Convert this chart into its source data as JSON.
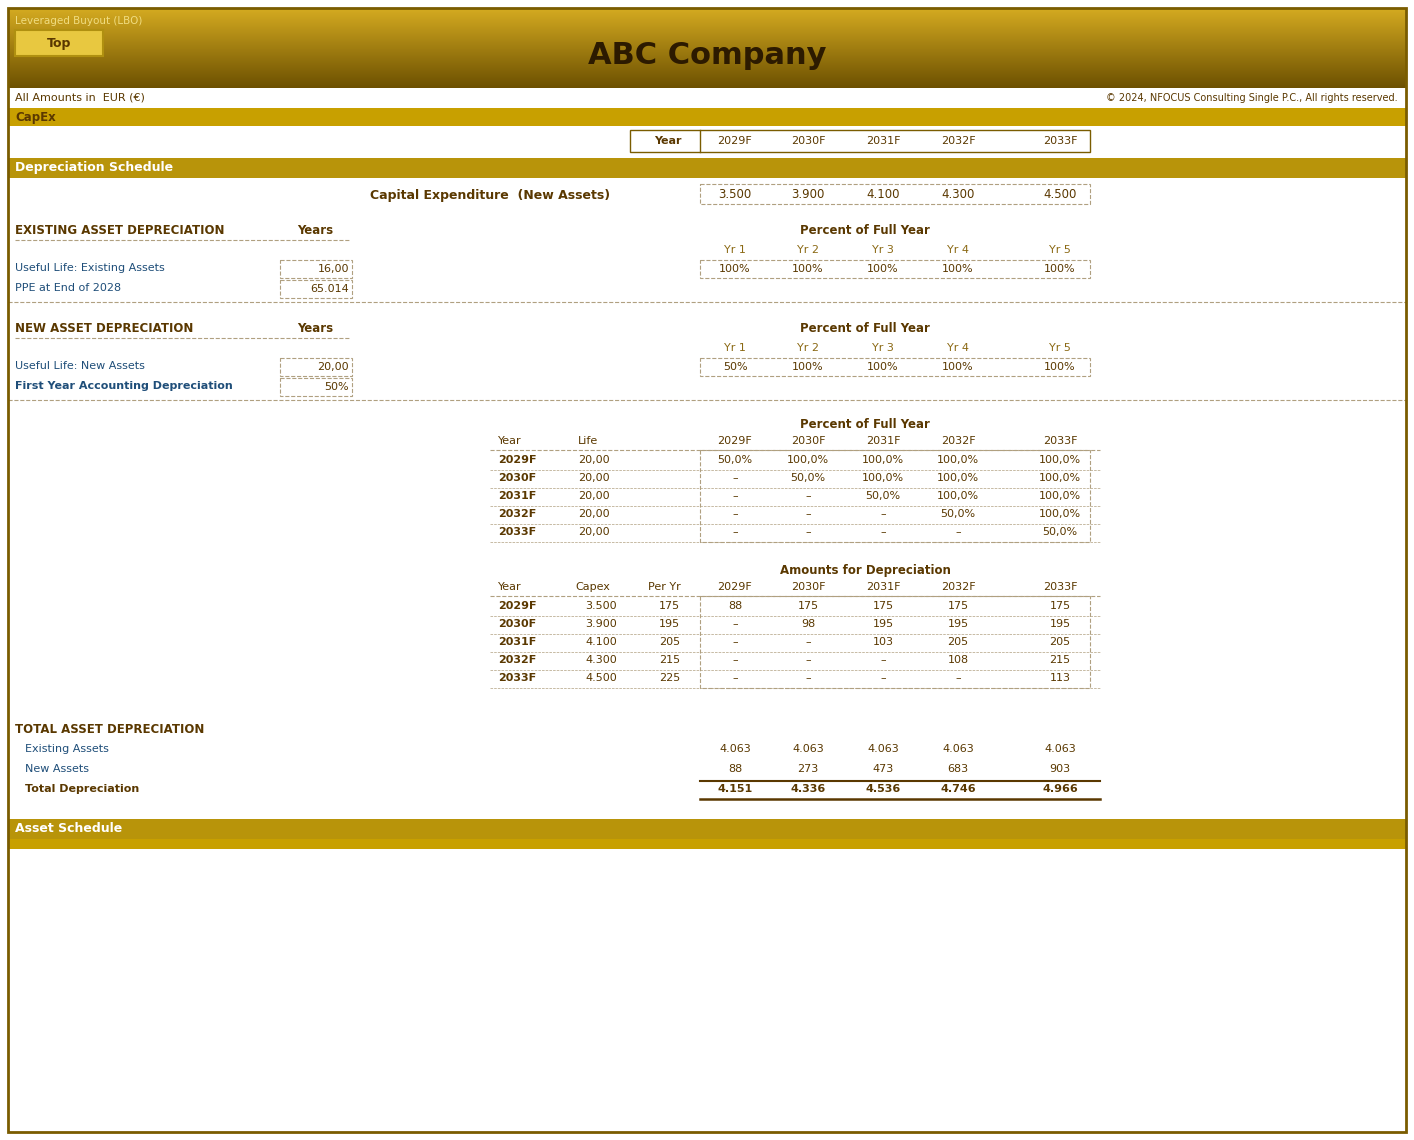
{
  "title": "ABC Company",
  "subtitle_left": "Leveraged Buyout (LBO)",
  "subtitle_right": "© 2024, NFOCUS Consulting Single P.C., All rights reserved.",
  "all_amounts": "All Amounts in  EUR (€)",
  "section_capex": "CapEx",
  "section_dep": "Depreciation Schedule",
  "section_asset": "Asset Schedule",
  "top_button": "Top",
  "years": [
    "Year",
    "2029F",
    "2030F",
    "2031F",
    "2032F",
    "2033F"
  ],
  "capex_label": "Capital Expenditure  (New Assets)",
  "capex_values": [
    "3.500",
    "3.900",
    "4.100",
    "4.300",
    "4.500"
  ],
  "existing_header": "EXISTING ASSET DEPRECIATION",
  "existing_years_label": "Years",
  "existing_rows": [
    [
      "Useful Life: Existing Assets",
      "16,00"
    ],
    [
      "PPE at End of 2028",
      "65.014"
    ]
  ],
  "existing_pfy_header": "Percent of Full Year",
  "existing_yr_labels": [
    "Yr 1",
    "Yr 2",
    "Yr 3",
    "Yr 4",
    "Yr 5"
  ],
  "existing_pfy_values": [
    "100%",
    "100%",
    "100%",
    "100%",
    "100%"
  ],
  "new_header": "NEW ASSET DEPRECIATION",
  "new_years_label": "Years",
  "new_rows": [
    [
      "Useful Life: New Assets",
      "20,00"
    ],
    [
      "First Year Accounting Depreciation",
      "50%"
    ]
  ],
  "new_pfy_header": "Percent of Full Year",
  "new_yr_labels": [
    "Yr 1",
    "Yr 2",
    "Yr 3",
    "Yr 4",
    "Yr 5"
  ],
  "new_pfy_values": [
    "50%",
    "100%",
    "100%",
    "100%",
    "100%"
  ],
  "pfy_table_header": "Percent of Full Year",
  "pfy_table_cols": [
    "Year",
    "Life",
    "2029F",
    "2030F",
    "2031F",
    "2032F",
    "2033F"
  ],
  "pfy_table_rows": [
    [
      "2029F",
      "20,00",
      "50,0%",
      "100,0%",
      "100,0%",
      "100,0%",
      "100,0%"
    ],
    [
      "2030F",
      "20,00",
      "–",
      "50,0%",
      "100,0%",
      "100,0%",
      "100,0%"
    ],
    [
      "2031F",
      "20,00",
      "–",
      "–",
      "50,0%",
      "100,0%",
      "100,0%"
    ],
    [
      "2032F",
      "20,00",
      "–",
      "–",
      "–",
      "50,0%",
      "100,0%"
    ],
    [
      "2033F",
      "20,00",
      "–",
      "–",
      "–",
      "–",
      "50,0%"
    ]
  ],
  "amt_table_header": "Amounts for Depreciation",
  "amt_table_cols": [
    "Year",
    "Capex",
    "Per Yr",
    "2029F",
    "2030F",
    "2031F",
    "2032F",
    "2033F"
  ],
  "amt_table_rows": [
    [
      "2029F",
      "3.500",
      "175",
      "88",
      "175",
      "175",
      "175",
      "175"
    ],
    [
      "2030F",
      "3.900",
      "195",
      "–",
      "98",
      "195",
      "195",
      "195"
    ],
    [
      "2031F",
      "4.100",
      "205",
      "–",
      "–",
      "103",
      "205",
      "205"
    ],
    [
      "2032F",
      "4.300",
      "215",
      "–",
      "–",
      "–",
      "108",
      "215"
    ],
    [
      "2033F",
      "4.500",
      "225",
      "–",
      "–",
      "–",
      "–",
      "113"
    ]
  ],
  "total_header": "TOTAL ASSET DEPRECIATION",
  "total_rows": [
    [
      "Existing Assets",
      "4.063",
      "4.063",
      "4.063",
      "4.063",
      "4.063"
    ],
    [
      "New Assets",
      "88",
      "273",
      "473",
      "683",
      "903"
    ],
    [
      "Total Depreciation",
      "4.151",
      "4.336",
      "4.536",
      "4.746",
      "4.966"
    ]
  ]
}
